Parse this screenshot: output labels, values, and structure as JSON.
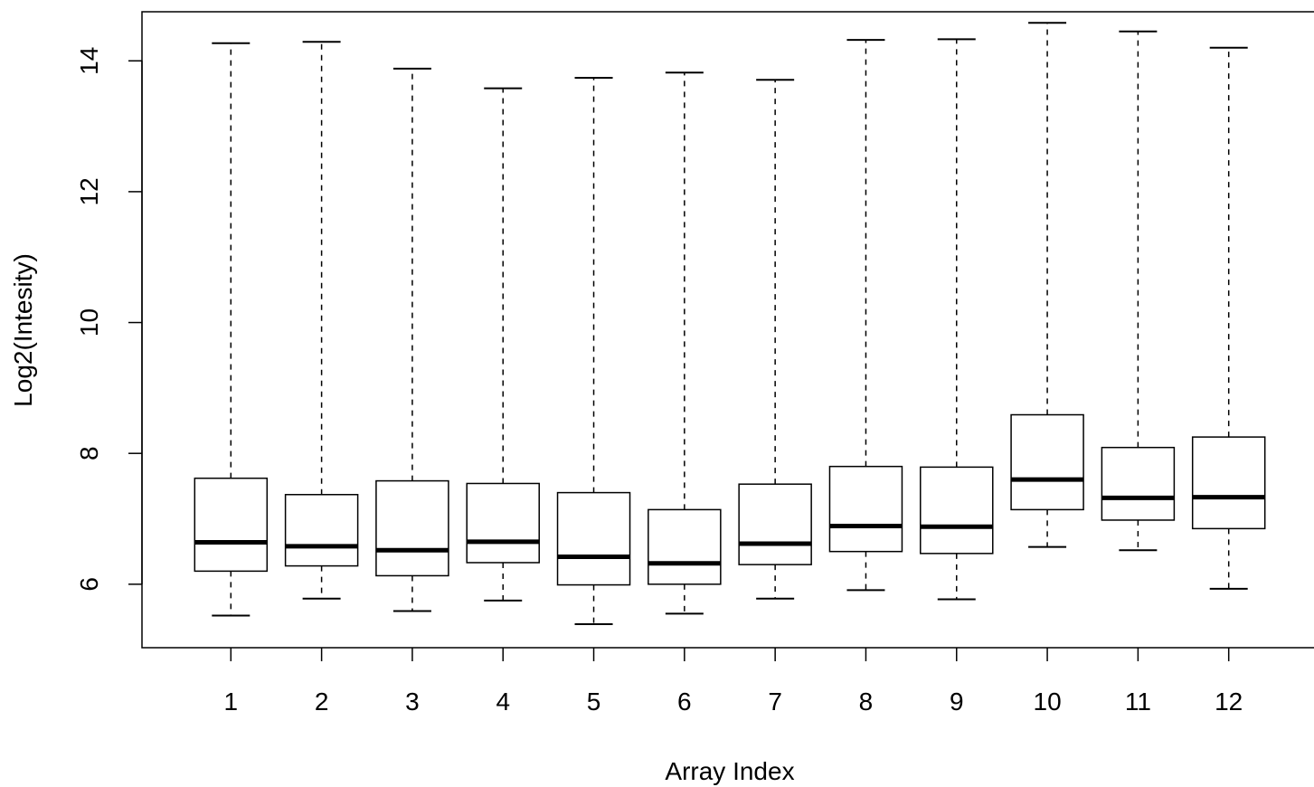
{
  "chart_data": {
    "type": "boxplot",
    "title": "",
    "xlabel": "Array Index",
    "ylabel": "Log2(Intesity)",
    "categories": [
      "1",
      "2",
      "3",
      "4",
      "5",
      "6",
      "7",
      "8",
      "9",
      "10",
      "11",
      "12"
    ],
    "x_range": [
      0.02,
      12.98
    ],
    "ylim": [
      5.03,
      14.75
    ],
    "y_ticks": [
      6,
      8,
      10,
      12,
      14
    ],
    "y_tick_labels": [
      "6",
      "8",
      "10",
      "12",
      "14"
    ],
    "grid": false,
    "boxes": [
      {
        "label": "1",
        "whisker_low": 5.52,
        "q1": 6.2,
        "median": 6.64,
        "q3": 7.62,
        "whisker_high": 14.27
      },
      {
        "label": "2",
        "whisker_low": 5.78,
        "q1": 6.28,
        "median": 6.58,
        "q3": 7.37,
        "whisker_high": 14.29
      },
      {
        "label": "3",
        "whisker_low": 5.59,
        "q1": 6.13,
        "median": 6.52,
        "q3": 7.58,
        "whisker_high": 13.88
      },
      {
        "label": "4",
        "whisker_low": 5.75,
        "q1": 6.33,
        "median": 6.65,
        "q3": 7.54,
        "whisker_high": 13.58
      },
      {
        "label": "5",
        "whisker_low": 5.39,
        "q1": 5.99,
        "median": 6.42,
        "q3": 7.4,
        "whisker_high": 13.74
      },
      {
        "label": "6",
        "whisker_low": 5.55,
        "q1": 6.0,
        "median": 6.32,
        "q3": 7.14,
        "whisker_high": 13.82
      },
      {
        "label": "7",
        "whisker_low": 5.78,
        "q1": 6.3,
        "median": 6.62,
        "q3": 7.53,
        "whisker_high": 13.71
      },
      {
        "label": "8",
        "whisker_low": 5.91,
        "q1": 6.5,
        "median": 6.89,
        "q3": 7.8,
        "whisker_high": 14.32
      },
      {
        "label": "9",
        "whisker_low": 5.77,
        "q1": 6.47,
        "median": 6.88,
        "q3": 7.79,
        "whisker_high": 14.33
      },
      {
        "label": "10",
        "whisker_low": 6.57,
        "q1": 7.14,
        "median": 7.6,
        "q3": 8.59,
        "whisker_high": 14.58
      },
      {
        "label": "11",
        "whisker_low": 6.52,
        "q1": 6.98,
        "median": 7.32,
        "q3": 8.09,
        "whisker_high": 14.45
      },
      {
        "label": "12",
        "whisker_low": 5.93,
        "q1": 6.85,
        "median": 7.33,
        "q3": 8.25,
        "whisker_high": 14.2
      }
    ]
  }
}
